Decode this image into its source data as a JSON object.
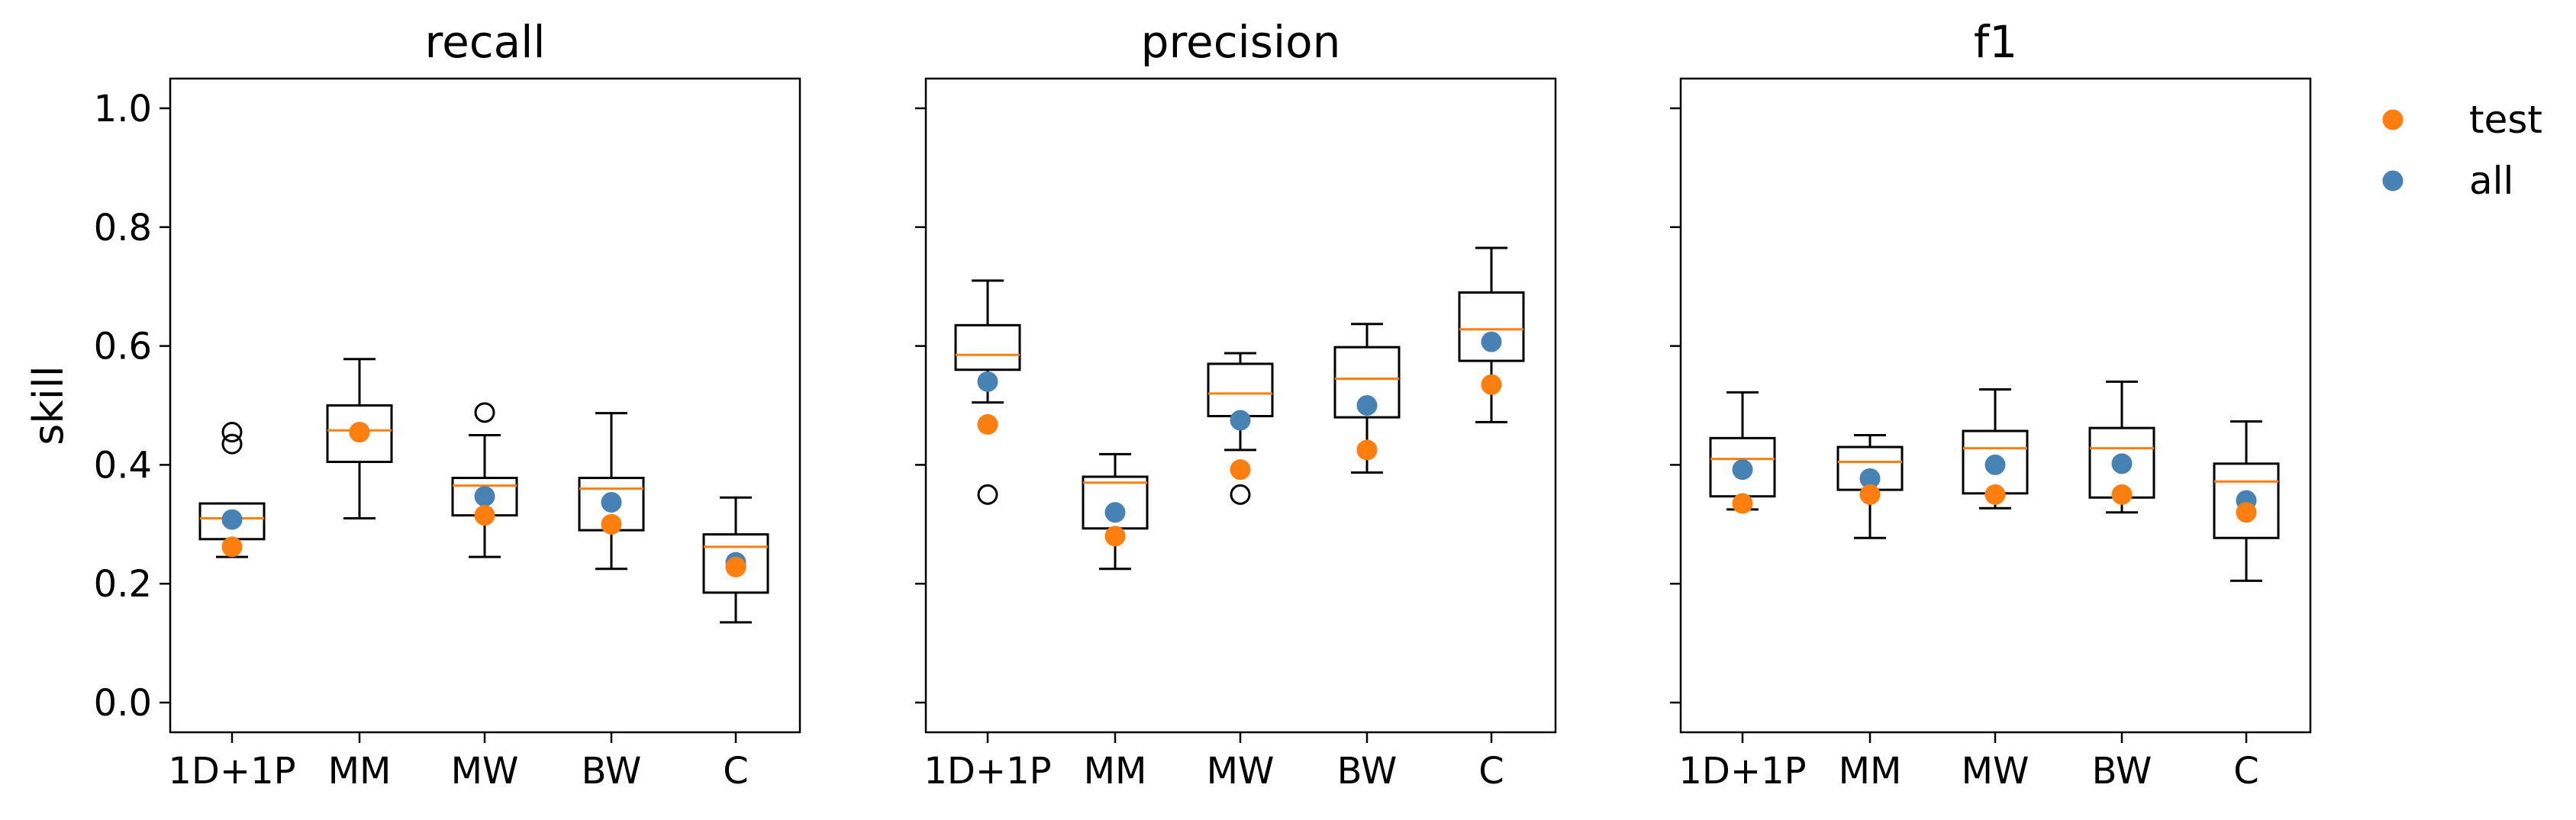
{
  "figure": {
    "ylabel": "skill",
    "categories": [
      "1D+1P",
      "MM",
      "MW",
      "BW",
      "C"
    ],
    "yticks": [
      "0.0",
      "0.2",
      "0.4",
      "0.6",
      "0.8",
      "1.0"
    ],
    "ylim": [
      -0.05,
      1.05
    ],
    "legend": {
      "position": "outside-right",
      "items": [
        {
          "label": "test",
          "color": "#ff7f0e"
        },
        {
          "label": "all",
          "color": "#4682b4"
        }
      ]
    },
    "median_color": "#ff7f0e",
    "box_color": "#000000",
    "outlier_marker": "open-circle",
    "grid": false
  },
  "chart_data": [
    {
      "type": "box",
      "title": "recall",
      "categories": [
        "1D+1P",
        "MM",
        "MW",
        "BW",
        "C"
      ],
      "boxes": [
        {
          "whislo": 0.245,
          "q1": 0.275,
          "med": 0.31,
          "q3": 0.335,
          "whishi": 0.335,
          "fliers": [
            0.435,
            0.455
          ]
        },
        {
          "whislo": 0.31,
          "q1": 0.405,
          "med": 0.458,
          "q3": 0.5,
          "whishi": 0.578,
          "fliers": []
        },
        {
          "whislo": 0.245,
          "q1": 0.315,
          "med": 0.365,
          "q3": 0.378,
          "whishi": 0.45,
          "fliers": [
            0.488
          ]
        },
        {
          "whislo": 0.225,
          "q1": 0.29,
          "med": 0.36,
          "q3": 0.378,
          "whishi": 0.487,
          "fliers": []
        },
        {
          "whislo": 0.135,
          "q1": 0.185,
          "med": 0.262,
          "q3": 0.283,
          "whishi": 0.345,
          "fliers": []
        }
      ],
      "series": [
        {
          "name": "test",
          "values": [
            0.262,
            0.455,
            0.315,
            0.3,
            0.228
          ]
        },
        {
          "name": "all",
          "values": [
            0.308,
            0.455,
            0.347,
            0.337,
            0.236
          ]
        }
      ]
    },
    {
      "type": "box",
      "title": "precision",
      "categories": [
        "1D+1P",
        "MM",
        "MW",
        "BW",
        "C"
      ],
      "boxes": [
        {
          "whislo": 0.505,
          "q1": 0.56,
          "med": 0.585,
          "q3": 0.635,
          "whishi": 0.71,
          "fliers": [
            0.35
          ]
        },
        {
          "whislo": 0.225,
          "q1": 0.293,
          "med": 0.37,
          "q3": 0.38,
          "whishi": 0.418,
          "fliers": []
        },
        {
          "whislo": 0.425,
          "q1": 0.482,
          "med": 0.52,
          "q3": 0.57,
          "whishi": 0.588,
          "fliers": [
            0.35
          ]
        },
        {
          "whislo": 0.387,
          "q1": 0.48,
          "med": 0.545,
          "q3": 0.598,
          "whishi": 0.637,
          "fliers": []
        },
        {
          "whislo": 0.472,
          "q1": 0.575,
          "med": 0.628,
          "q3": 0.69,
          "whishi": 0.765,
          "fliers": []
        }
      ],
      "series": [
        {
          "name": "test",
          "values": [
            0.468,
            0.28,
            0.392,
            0.425,
            0.535
          ]
        },
        {
          "name": "all",
          "values": [
            0.54,
            0.32,
            0.475,
            0.5,
            0.607
          ]
        }
      ]
    },
    {
      "type": "box",
      "title": "f1",
      "categories": [
        "1D+1P",
        "MM",
        "MW",
        "BW",
        "C"
      ],
      "boxes": [
        {
          "whislo": 0.325,
          "q1": 0.347,
          "med": 0.41,
          "q3": 0.445,
          "whishi": 0.522,
          "fliers": []
        },
        {
          "whislo": 0.277,
          "q1": 0.358,
          "med": 0.405,
          "q3": 0.43,
          "whishi": 0.45,
          "fliers": []
        },
        {
          "whislo": 0.327,
          "q1": 0.352,
          "med": 0.428,
          "q3": 0.457,
          "whishi": 0.527,
          "fliers": []
        },
        {
          "whislo": 0.32,
          "q1": 0.345,
          "med": 0.428,
          "q3": 0.462,
          "whishi": 0.54,
          "fliers": []
        },
        {
          "whislo": 0.205,
          "q1": 0.277,
          "med": 0.372,
          "q3": 0.402,
          "whishi": 0.473,
          "fliers": []
        }
      ],
      "series": [
        {
          "name": "test",
          "values": [
            0.335,
            0.35,
            0.35,
            0.35,
            0.32
          ]
        },
        {
          "name": "all",
          "values": [
            0.392,
            0.377,
            0.4,
            0.402,
            0.34
          ]
        }
      ]
    }
  ]
}
